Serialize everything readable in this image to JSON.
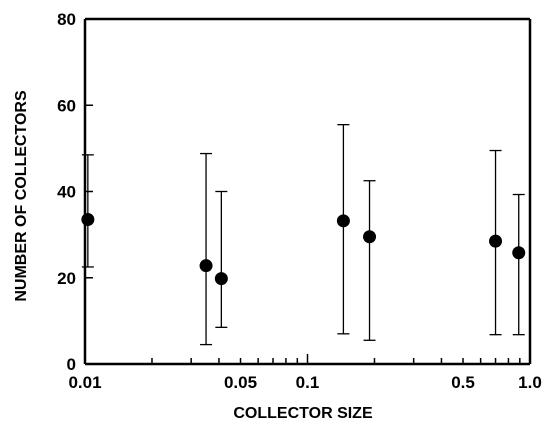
{
  "chart_data": {
    "type": "scatter",
    "title": "",
    "xlabel": "COLLECTOR SIZE",
    "ylabel": "NUMBER OF COLLECTORS",
    "x_scale": "log",
    "xlim": [
      0.01,
      1.0
    ],
    "ylim": [
      0,
      80
    ],
    "x_tick_labels": [
      {
        "value": 0.01,
        "label": "0.01"
      },
      {
        "value": 0.05,
        "label": "0.05"
      },
      {
        "value": 0.1,
        "label": "0.1"
      },
      {
        "value": 0.5,
        "label": "0.5"
      },
      {
        "value": 1.0,
        "label": "1.0"
      }
    ],
    "y_tick_labels": [
      {
        "value": 0,
        "label": "0"
      },
      {
        "value": 20,
        "label": "20"
      },
      {
        "value": 40,
        "label": "40"
      },
      {
        "value": 60,
        "label": "60"
      },
      {
        "value": 80,
        "label": "80"
      }
    ],
    "grid": false,
    "points": [
      {
        "x": 0.0103,
        "y": 33.5,
        "low": 22.5,
        "high": 48.5
      },
      {
        "x": 0.035,
        "y": 22.8,
        "low": 4.5,
        "high": 48.8
      },
      {
        "x": 0.041,
        "y": 19.8,
        "low": 8.5,
        "high": 40.0
      },
      {
        "x": 0.145,
        "y": 33.2,
        "low": 7.0,
        "high": 55.5
      },
      {
        "x": 0.19,
        "y": 29.5,
        "low": 5.5,
        "high": 42.5
      },
      {
        "x": 0.7,
        "y": 28.5,
        "low": 6.8,
        "high": 49.5
      },
      {
        "x": 0.89,
        "y": 25.8,
        "low": 6.8,
        "high": 39.3
      }
    ]
  }
}
